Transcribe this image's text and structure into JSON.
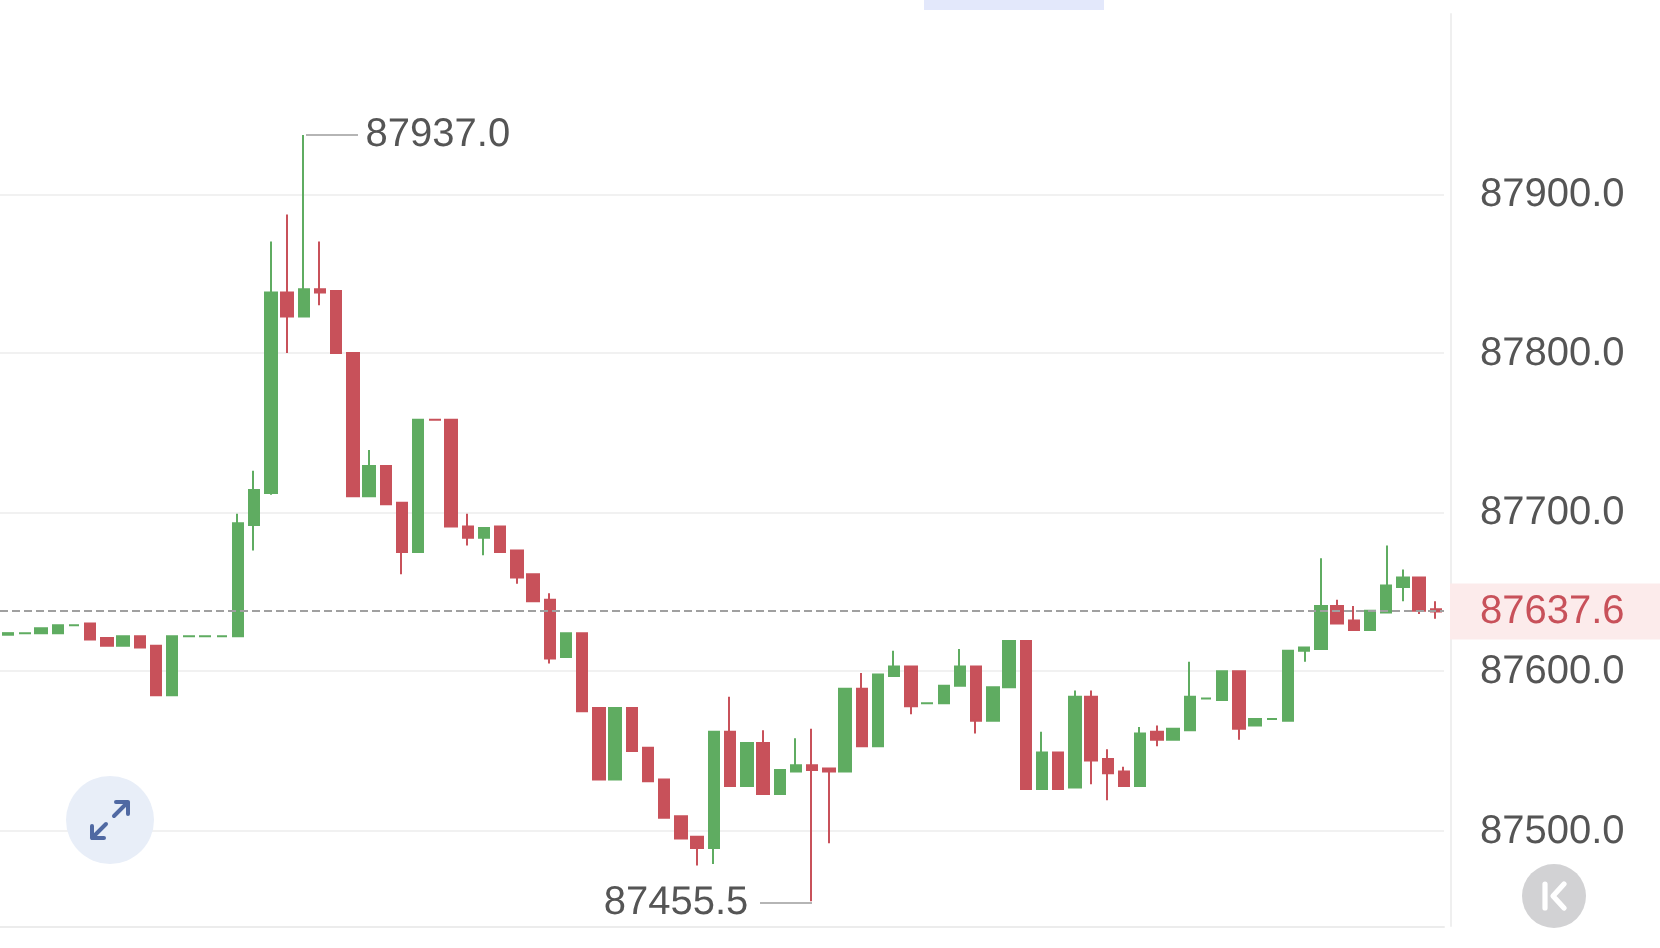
{
  "chart_data": {
    "type": "candlestick",
    "categories": [
      null,
      null,
      null,
      null,
      null,
      null,
      null,
      null,
      null,
      null,
      null,
      null,
      null,
      null,
      null,
      null,
      null,
      null,
      null,
      null,
      null,
      null,
      null,
      null,
      null,
      null,
      null,
      null,
      null,
      null,
      null,
      null,
      null,
      null,
      null,
      null,
      null,
      null,
      null,
      null,
      null,
      null,
      null,
      null,
      null,
      null,
      null,
      null,
      null,
      null,
      null,
      null,
      null,
      null,
      null,
      null,
      null,
      null,
      null,
      null,
      null,
      null,
      null,
      null,
      null,
      null,
      null,
      null,
      null,
      null,
      null,
      null,
      null,
      null,
      null,
      null,
      null,
      null,
      null,
      null,
      null,
      null,
      null,
      null,
      null,
      null,
      null,
      null
    ],
    "ohlc": [
      [
        87623,
        87624,
        87623,
        87624
      ],
      [
        87624,
        87624,
        87624,
        87624
      ],
      [
        87624,
        87627,
        87624,
        87627
      ],
      [
        87624,
        87629,
        87624,
        87629
      ],
      [
        87629,
        87629,
        87629,
        87629
      ],
      [
        87630,
        87630,
        87620,
        87620
      ],
      [
        87621,
        87621,
        87616,
        87616
      ],
      [
        87616,
        87622,
        87616,
        87622
      ],
      [
        87622,
        87622,
        87615,
        87615
      ],
      [
        87616,
        87616,
        87585,
        87585
      ],
      [
        87585,
        87622,
        87585,
        87622
      ],
      [
        87622,
        87622,
        87622,
        87622
      ],
      [
        87622,
        87622,
        87622,
        87622
      ],
      [
        87622,
        87622,
        87622,
        87622
      ],
      [
        87622,
        87699,
        87622,
        87693
      ],
      [
        87692,
        87726,
        87676,
        87714
      ],
      [
        87712,
        87870,
        87711,
        87838
      ],
      [
        87838,
        87887,
        87800,
        87823
      ],
      [
        87823,
        87937.0,
        87823,
        87840
      ],
      [
        87840,
        87870,
        87830,
        87838
      ],
      [
        87839,
        87839,
        87800,
        87800
      ],
      [
        87800,
        87800,
        87710,
        87710
      ],
      [
        87710,
        87739,
        87710,
        87729
      ],
      [
        87729,
        87729,
        87705,
        87705
      ],
      [
        87706,
        87706,
        87661,
        87675
      ],
      [
        87675,
        87758,
        87675,
        87758
      ],
      [
        87758,
        87758,
        87758,
        87758
      ],
      [
        87758,
        87758,
        87691,
        87691
      ],
      [
        87691,
        87699,
        87679,
        87684
      ],
      [
        87684,
        87690,
        87673,
        87690
      ],
      [
        87691,
        87691,
        87675,
        87675
      ],
      [
        87676,
        87676,
        87655,
        87659
      ],
      [
        87661,
        87661,
        87644,
        87644
      ],
      [
        87645,
        87649,
        87605,
        87608
      ],
      [
        87609,
        87624,
        87609,
        87624
      ],
      [
        87624,
        87624,
        87575,
        87575
      ],
      [
        87577,
        87577,
        87532,
        87532
      ],
      [
        87532,
        87577,
        87532,
        87577
      ],
      [
        87577,
        87577,
        87550,
        87550
      ],
      [
        87552,
        87552,
        87531,
        87531
      ],
      [
        87532,
        87532,
        87508,
        87508
      ],
      [
        87509,
        87509,
        87495,
        87495
      ],
      [
        87496,
        87496,
        87478,
        87489
      ],
      [
        87489,
        87562,
        87479,
        87562
      ],
      [
        87562,
        87584,
        87528,
        87528
      ],
      [
        87528,
        87555,
        87528,
        87555
      ],
      [
        87555,
        87563,
        87523,
        87523
      ],
      [
        87523,
        87538,
        87523,
        87538
      ],
      [
        87537,
        87558,
        87537,
        87541
      ],
      [
        87541,
        87564,
        87455.5,
        87538
      ],
      [
        87539,
        87539,
        87492,
        87537
      ],
      [
        87537,
        87589,
        87537,
        87589
      ],
      [
        87589,
        87599,
        87553,
        87553
      ],
      [
        87553,
        87598,
        87553,
        87598
      ],
      [
        87597,
        87613,
        87597,
        87603
      ],
      [
        87603,
        87603,
        87573,
        87578
      ],
      [
        87580,
        87580,
        87580,
        87580
      ],
      [
        87580,
        87591,
        87580,
        87591
      ],
      [
        87591,
        87614,
        87591,
        87603
      ],
      [
        87603,
        87603,
        87561,
        87569
      ],
      [
        87569,
        87590,
        87569,
        87590
      ],
      [
        87590,
        87619,
        87590,
        87619
      ],
      [
        87619,
        87619,
        87526,
        87526
      ],
      [
        87526,
        87562,
        87526,
        87549
      ],
      [
        87549,
        87549,
        87526,
        87526
      ],
      [
        87527,
        87588,
        87527,
        87584
      ],
      [
        87584,
        87588,
        87529,
        87544
      ],
      [
        87545,
        87551,
        87519,
        87536
      ],
      [
        87537,
        87540,
        87528,
        87528
      ],
      [
        87528,
        87565,
        87528,
        87561
      ],
      [
        87562,
        87566,
        87553,
        87557
      ],
      [
        87557,
        87564,
        87557,
        87564
      ],
      [
        87563,
        87606,
        87563,
        87584
      ],
      [
        87583,
        87583,
        87583,
        87583
      ],
      [
        87582,
        87600,
        87582,
        87600
      ],
      [
        87600,
        87600,
        87557,
        87564
      ],
      [
        87566,
        87570,
        87566,
        87570
      ],
      [
        87570,
        87570,
        87570,
        87570
      ],
      [
        87569,
        87613,
        87569,
        87613
      ],
      [
        87613,
        87615,
        87606,
        87615
      ],
      [
        87614,
        87671,
        87614,
        87641
      ],
      [
        87641,
        87645,
        87630,
        87630
      ],
      [
        87632,
        87641,
        87626,
        87626
      ],
      [
        87626,
        87638,
        87626,
        87638
      ],
      [
        87637,
        87679,
        87637,
        87654
      ],
      [
        87653,
        87664,
        87644,
        87659
      ],
      [
        87659,
        87659,
        87636,
        87638
      ],
      [
        87639,
        87644,
        87633,
        87637.6
      ]
    ],
    "colors": [
      "#5fac61",
      "#5fac61",
      "#5fac61",
      "#5fac61",
      "#5fac61",
      "#c8515a",
      "#c8515a",
      "#5fac61",
      "#c8515a",
      "#c8515a",
      "#5fac61",
      "#5fac61",
      "#5fac61",
      "#5fac61",
      "#5fac61",
      "#5fac61",
      "#5fac61",
      "#c8515a",
      "#5fac61",
      "#c8515a",
      "#c8515a",
      "#c8515a",
      "#5fac61",
      "#c8515a",
      "#c8515a",
      "#5fac61",
      "#c8515a",
      "#c8515a",
      "#c8515a",
      "#5fac61",
      "#c8515a",
      "#c8515a",
      "#c8515a",
      "#c8515a",
      "#5fac61",
      "#c8515a",
      "#c8515a",
      "#5fac61",
      "#c8515a",
      "#c8515a",
      "#c8515a",
      "#c8515a",
      "#c8515a",
      "#5fac61",
      "#c8515a",
      "#5fac61",
      "#c8515a",
      "#5fac61",
      "#5fac61",
      "#c8515a",
      "#c8515a",
      "#5fac61",
      "#c8515a",
      "#5fac61",
      "#5fac61",
      "#c8515a",
      "#5fac61",
      "#5fac61",
      "#5fac61",
      "#c8515a",
      "#5fac61",
      "#5fac61",
      "#c8515a",
      "#5fac61",
      "#c8515a",
      "#5fac61",
      "#c8515a",
      "#c8515a",
      "#c8515a",
      "#5fac61",
      "#c8515a",
      "#5fac61",
      "#5fac61",
      "#5fac61",
      "#5fac61",
      "#c8515a",
      "#5fac61",
      "#5fac61",
      "#5fac61",
      "#5fac61",
      "#5fac61",
      "#c8515a",
      "#c8515a",
      "#5fac61",
      "#5fac61",
      "#5fac61",
      "#c8515a",
      "#c8515a"
    ],
    "ylim": [
      87440,
      88013
    ],
    "yticks": [
      {
        "value": 87500,
        "label": "87500.0"
      },
      {
        "value": 87600,
        "label": "87600.0"
      },
      {
        "value": 87700,
        "label": "87700.0"
      },
      {
        "value": 87800,
        "label": "87800.0"
      },
      {
        "value": 87900,
        "label": "87900.0"
      }
    ],
    "grid": "y",
    "tick_labels": "y",
    "ref_lines": [
      {
        "axis": "y",
        "value": 87637.6,
        "label": "87637.6",
        "color": "#a0a0a0",
        "line_style": "dashed"
      }
    ],
    "annotations": [
      "87937.0",
      "87455.5"
    ]
  }
}
